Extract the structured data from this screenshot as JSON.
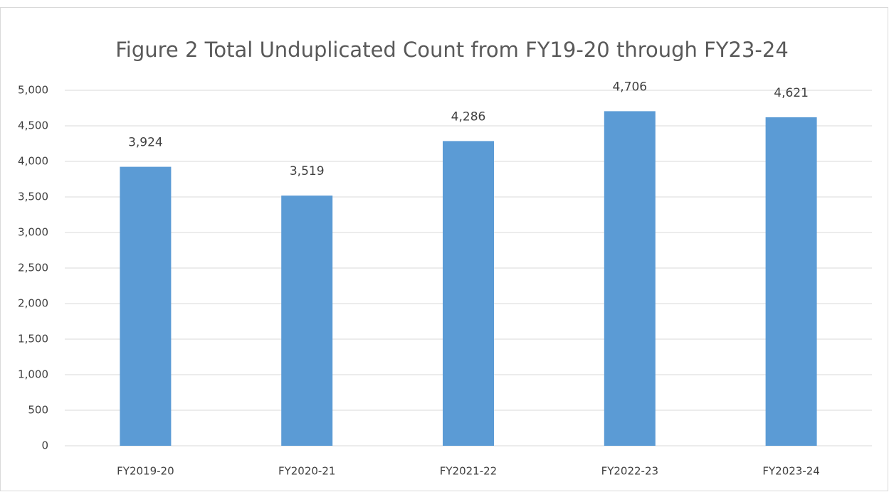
{
  "chart_data": {
    "type": "bar",
    "title": "Figure 2 Total Unduplicated Count from FY19-20 through FY23-24",
    "categories": [
      "FY2019-20",
      "FY2020-21",
      "FY2021-22",
      "FY2022-23",
      "FY2023-24"
    ],
    "values": [
      3924,
      3519,
      4286,
      4706,
      4621
    ],
    "value_labels": [
      "3,924",
      "3,519",
      "4,286",
      "4,706",
      "4,621"
    ],
    "color": "#5b9bd5",
    "ylim": [
      0,
      5000
    ],
    "yticks": [
      0,
      500,
      {
        "value": 1000,
        "label": "1,000"
      },
      {
        "value": 1500,
        "label": "1,500"
      },
      {
        "value": 2000,
        "label": "2,000"
      },
      {
        "value": 2500,
        "label": "2,500"
      },
      {
        "value": 3000,
        "label": "3,000"
      },
      {
        "value": 3500,
        "label": "3,500"
      },
      {
        "value": 4000,
        "label": "4,000"
      },
      {
        "value": 4500,
        "label": "4,500"
      },
      {
        "value": 5000,
        "label": "5,000"
      }
    ],
    "grid": true
  }
}
